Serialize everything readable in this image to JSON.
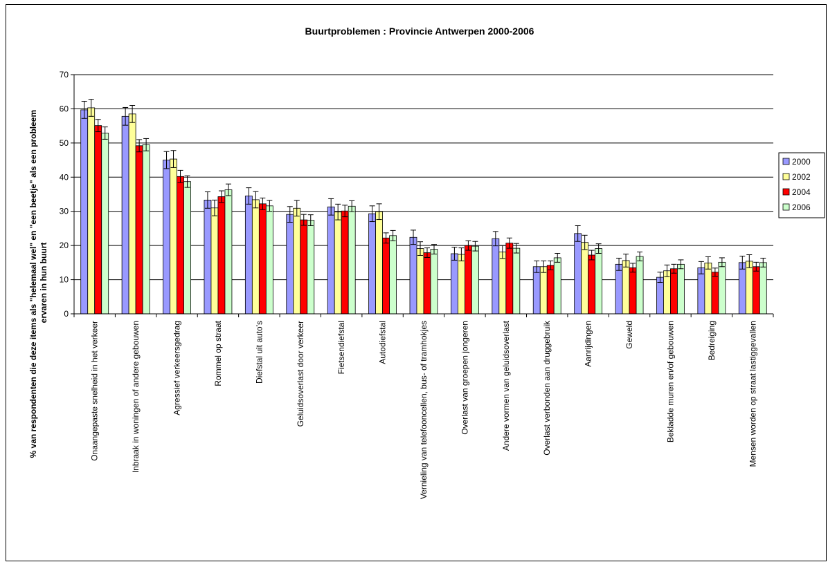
{
  "chart_data": {
    "type": "bar",
    "title": "Buurtproblemen : Provincie Antwerpen 2000-2006",
    "ylabel_lines": [
      "% van respondenten die deze items als \"helemaal wel\" en \"een beetje\" als een probleem",
      "ervaren in hun buurt"
    ],
    "xlabel": "",
    "ylim": [
      0,
      70
    ],
    "yticks": [
      0,
      10,
      20,
      30,
      40,
      50,
      60,
      70
    ],
    "grid": true,
    "legend_position": "right",
    "categories": [
      "Onaangepaste snelheid in het verkeer",
      "Inbraak in woningen of andere gebouwen",
      "Agressief verkeersgedrag",
      "Rommel op straat",
      "Diefstal uit auto's",
      "Geluidsoverlast door verkeer",
      "Fietsendiefstal",
      "Autodiefstal",
      "Vernieling van telefooncellen, bus- of tramhokjes",
      "Overlast van groepen jongeren",
      "Andere vormen van geluidsoverlast",
      "Overlast verbonden aan druggebruik",
      "Aanrijdingen",
      "Geweld",
      "Bekladde muren en/of gebouwen",
      "Bedreiging",
      "Mensen worden op straat lastiggevallen"
    ],
    "series": [
      {
        "name": "2000",
        "color": "#9999ff",
        "values": [
          59.7,
          57.8,
          45.0,
          33.3,
          34.5,
          29.1,
          31.3,
          29.3,
          22.4,
          17.6,
          22.0,
          13.8,
          23.5,
          14.5,
          10.7,
          13.5,
          15.0
        ],
        "errors": [
          2.5,
          2.6,
          2.5,
          2.4,
          2.4,
          2.3,
          2.4,
          2.3,
          2.1,
          1.9,
          2.1,
          1.7,
          2.3,
          1.8,
          1.5,
          1.8,
          1.9
        ]
      },
      {
        "name": "2002",
        "color": "#ffff99",
        "values": [
          60.3,
          58.5,
          45.3,
          31.0,
          33.4,
          30.9,
          29.8,
          29.9,
          19.1,
          17.4,
          18.1,
          13.8,
          20.9,
          15.6,
          12.6,
          14.9,
          15.4
        ],
        "errors": [
          2.5,
          2.5,
          2.5,
          2.3,
          2.4,
          2.3,
          2.3,
          2.3,
          2.0,
          1.9,
          1.9,
          1.7,
          2.1,
          1.9,
          1.7,
          1.8,
          1.9
        ]
      },
      {
        "name": "2004",
        "color": "#ff0000",
        "values": [
          55.1,
          49.2,
          40.2,
          34.3,
          32.2,
          27.5,
          30.1,
          22.2,
          17.9,
          20.0,
          20.7,
          14.2,
          17.2,
          13.5,
          13.2,
          12.2,
          13.8
        ],
        "errors": [
          1.8,
          1.8,
          1.8,
          1.7,
          1.7,
          1.6,
          1.7,
          1.5,
          1.4,
          1.4,
          1.5,
          1.3,
          1.4,
          1.3,
          1.3,
          1.2,
          1.3
        ]
      },
      {
        "name": "2006",
        "color": "#ccffcc",
        "values": [
          52.9,
          49.5,
          38.7,
          36.3,
          31.6,
          27.4,
          31.5,
          22.9,
          18.9,
          19.8,
          19.2,
          16.4,
          19.1,
          16.8,
          14.5,
          15.1,
          15.0
        ],
        "errors": [
          1.8,
          1.8,
          1.7,
          1.7,
          1.6,
          1.6,
          1.6,
          1.5,
          1.4,
          1.4,
          1.4,
          1.3,
          1.4,
          1.3,
          1.3,
          1.3,
          1.3
        ]
      }
    ]
  }
}
